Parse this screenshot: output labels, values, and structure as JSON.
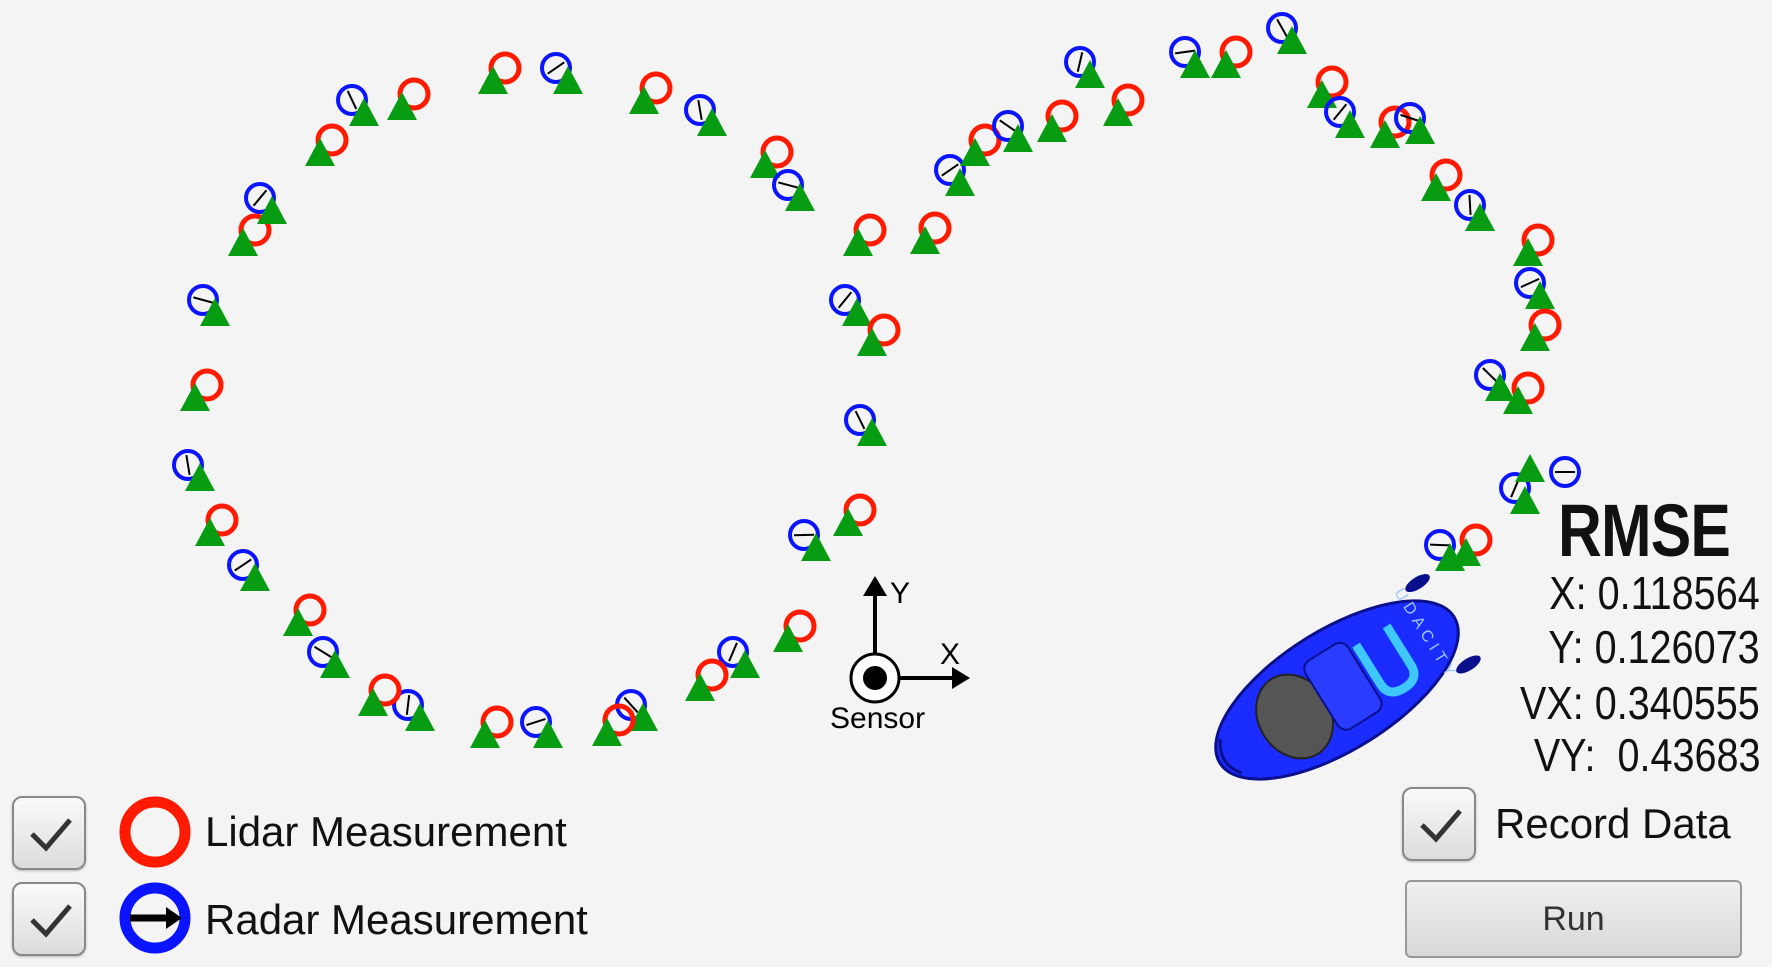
{
  "legend": {
    "lidar_label": "Lidar Measurement",
    "radar_label": "Radar Measurement",
    "lidar_checked": true,
    "radar_checked": true
  },
  "rmse": {
    "title": "RMSE",
    "x": "X: 0.118564",
    "y": "Y: 0.126073",
    "vx": "VX: 0.340555",
    "vy": "VY:  0.43683"
  },
  "sensor": {
    "label": "Sensor",
    "x_axis": "X",
    "y_axis": "Y"
  },
  "record_data": {
    "label": "Record Data",
    "checked": true
  },
  "run_button": {
    "label": "Run"
  },
  "colors": {
    "lidar": "#ff1a00",
    "radar": "#0a14ff",
    "estimate": "#079c12",
    "car": "#1a2cff",
    "background": "#f4f4f4"
  },
  "car": {
    "logo_text": "UDACITY"
  }
}
